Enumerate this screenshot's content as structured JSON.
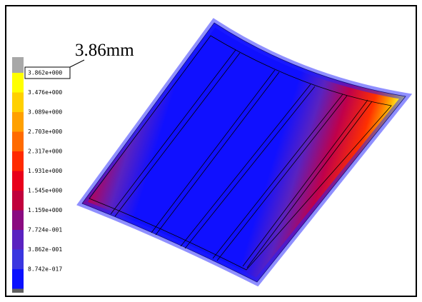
{
  "annotation": "3.86mm",
  "legend": {
    "labels": [
      "3.862e+000",
      "3.476e+000",
      "3.089e+000",
      "2.703e+000",
      "2.317e+000",
      "1.931e+000",
      "1.545e+000",
      "1.159e+000",
      "7.724e-001",
      "3.862e-001",
      "8.742e-017"
    ]
  }
}
